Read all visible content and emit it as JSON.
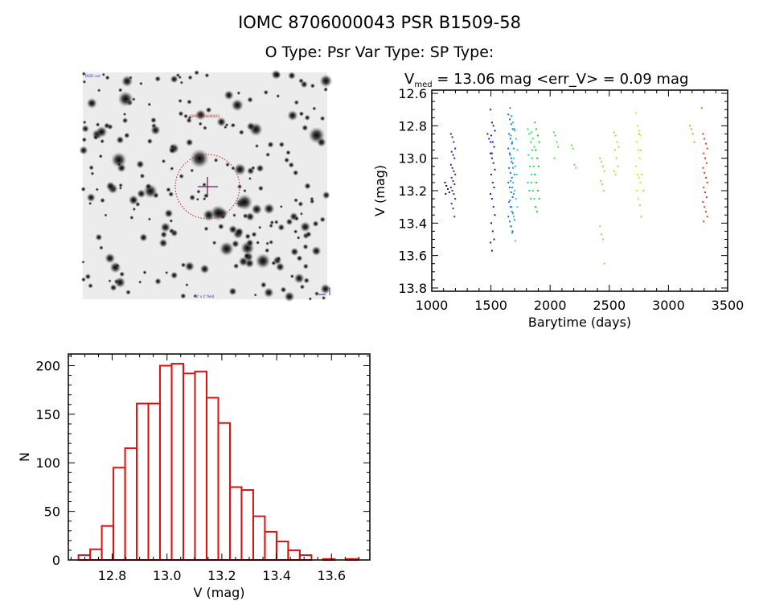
{
  "header": {
    "title": "IOMC 8706000043    PSR B1509-58",
    "subtitle": "O Type: Psr   Var Type:    SP Type:"
  },
  "image_panel": {
    "label_top_left": "DSS2 red",
    "label_center": "IOMC 8706000043",
    "label_bottom": "2' x 2' field"
  },
  "chart_data": [
    {
      "type": "scatter",
      "title_prefix": "V",
      "title_sub": "med",
      "title_rest": " = 13.06 mag <err_V> = 0.09 mag",
      "xlabel": "Barytime (days)",
      "ylabel": "V (mag)",
      "xlim": [
        1000,
        3500
      ],
      "ylim": [
        13.82,
        12.58
      ],
      "y_inverted": true,
      "xticks": [
        1000,
        1500,
        2000,
        2500,
        3000,
        3500
      ],
      "yticks": [
        12.6,
        12.8,
        13.0,
        13.2,
        13.4,
        13.6,
        13.8
      ],
      "ytick_labels": [
        "12.6",
        "12.8",
        "13.0",
        "13.2",
        "13.4",
        "13.6",
        "13.8"
      ],
      "groups": [
        {
          "t": 1130,
          "color": "#2a0a3a",
          "v": [
            13.15,
            13.17,
            13.19,
            13.21,
            13.22
          ]
        },
        {
          "t": 1180,
          "color": "#5a1a8a",
          "v": [
            12.85,
            12.87,
            12.9,
            12.94,
            12.96,
            12.98,
            13.0,
            13.04,
            13.06,
            13.08,
            13.1,
            13.12,
            13.14,
            13.16,
            13.18,
            13.2,
            13.22,
            13.25,
            13.28,
            13.31,
            13.36
          ]
        },
        {
          "t": 1490,
          "color": "#2a20b0",
          "v": [
            12.85,
            12.88,
            12.9,
            12.97
          ]
        },
        {
          "t": 1515,
          "color": "#1a1aa8",
          "v": [
            12.7,
            12.78,
            12.8,
            12.83,
            12.86,
            12.9,
            12.93,
            12.97,
            13.0,
            13.03,
            13.07,
            13.1,
            13.15,
            13.18,
            13.22,
            13.25,
            13.3,
            13.35,
            13.4,
            13.45,
            13.5,
            13.52,
            13.57
          ]
        },
        {
          "t": 1665,
          "color": "#1a70e0",
          "v": [
            12.73,
            12.76,
            12.79,
            12.82,
            12.85,
            12.88,
            12.91,
            12.94,
            12.97,
            13.0,
            13.03,
            13.06,
            13.09,
            13.12,
            13.15,
            13.18,
            13.21,
            13.24,
            13.27,
            13.3,
            13.33,
            13.36,
            13.39,
            13.42,
            13.45
          ]
        },
        {
          "t": 1680,
          "color": "#1a98e8",
          "v": [
            12.69,
            12.74,
            12.78,
            12.82,
            12.86,
            12.9,
            12.94,
            12.98,
            13.02,
            13.06,
            13.1,
            13.14,
            13.18,
            13.22,
            13.26,
            13.3,
            13.34,
            13.38,
            13.42,
            13.46
          ]
        },
        {
          "t": 1705,
          "color": "#20d0d0",
          "v": [
            12.78,
            12.83,
            12.88,
            12.95,
            13.0,
            13.05,
            13.1,
            13.15,
            13.2,
            13.25,
            13.3,
            13.36,
            13.51
          ]
        },
        {
          "t": 1830,
          "color": "#20e090",
          "v": [
            12.82,
            12.85,
            12.9,
            12.95,
            12.98,
            13.05,
            13.1,
            13.15,
            13.2,
            13.25
          ]
        },
        {
          "t": 1860,
          "color": "#30e050",
          "v": [
            12.84,
            12.88,
            12.93,
            12.95,
            13.0,
            13.05,
            13.1,
            13.15,
            13.2,
            13.25,
            13.3
          ]
        },
        {
          "t": 1890,
          "color": "#20d020",
          "v": [
            12.78,
            12.82,
            12.86,
            12.9,
            12.95,
            13.0,
            13.05,
            13.1,
            13.15,
            13.2,
            13.25,
            13.3,
            13.33
          ]
        },
        {
          "t": 2050,
          "color": "#40e040",
          "v": [
            12.84,
            12.86,
            12.9,
            12.93,
            13.0
          ]
        },
        {
          "t": 2200,
          "color": "#60e040",
          "v": [
            12.92,
            12.94,
            13.04,
            13.06
          ]
        },
        {
          "t": 2440,
          "color": "#90e040",
          "v": [
            13.0,
            13.02,
            13.05,
            13.08,
            13.14,
            13.16,
            13.2,
            13.42,
            13.47,
            13.5,
            13.65
          ]
        },
        {
          "t": 2560,
          "color": "#a8e040",
          "v": [
            12.84,
            12.86,
            12.9,
            12.93,
            12.95,
            13.0,
            13.05,
            13.08,
            13.1
          ]
        },
        {
          "t": 2745,
          "color": "#e0e020",
          "v": [
            12.72,
            12.8,
            12.83,
            12.86,
            12.9,
            12.95,
            13.0,
            13.05,
            13.1,
            13.12,
            13.15,
            13.2,
            13.25
          ]
        },
        {
          "t": 2770,
          "color": "#e0c020",
          "v": [
            12.85,
            12.95,
            13.1,
            13.2,
            13.29,
            13.36
          ]
        },
        {
          "t": 3200,
          "color": "#e0a020",
          "v": [
            12.8,
            12.82,
            12.85,
            12.9
          ]
        },
        {
          "t": 3300,
          "color": "#e08020",
          "v": [
            12.69
          ]
        },
        {
          "t": 3310,
          "color": "#e04010",
          "v": [
            12.85,
            12.88,
            12.91,
            12.94,
            12.97,
            13.0,
            13.03,
            13.06,
            13.09,
            13.12,
            13.15,
            13.18,
            13.21,
            13.24,
            13.27,
            13.3,
            13.33,
            13.36,
            13.39
          ]
        }
      ]
    },
    {
      "type": "bar",
      "subtype": "histogram",
      "xlabel": "V (mag)",
      "ylabel": "N",
      "xlim": [
        12.64,
        13.74
      ],
      "ylim": [
        0,
        212
      ],
      "xticks": [
        12.8,
        13.0,
        13.2,
        13.4,
        13.6
      ],
      "xtick_labels": [
        "12.8",
        "13.0",
        "13.2",
        "13.4",
        "13.6"
      ],
      "yticks": [
        0,
        50,
        100,
        150,
        200
      ],
      "bin_start": 12.677,
      "bin_width": 0.0425,
      "values": [
        5,
        11,
        35,
        95,
        115,
        161,
        161,
        200,
        202,
        192,
        194,
        167,
        141,
        75,
        72,
        45,
        29,
        19,
        10,
        5,
        0,
        1,
        0,
        1
      ],
      "color": "#dd1111"
    }
  ]
}
